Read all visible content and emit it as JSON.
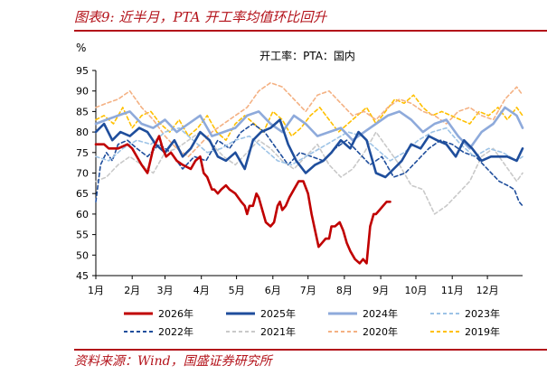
{
  "figure": {
    "title": "图表9:  近半月，PTA 开工率均值环比回升",
    "source": "资料来源：Wind，国盛证券研究所"
  },
  "chart_data": {
    "type": "line",
    "title": "开工率：PTA：国内",
    "ylabel": "%",
    "xlabel": "",
    "ylim": [
      45,
      95
    ],
    "yticks": [
      "45",
      "50",
      "55",
      "60",
      "65",
      "70",
      "75",
      "80",
      "85",
      "90",
      "95"
    ],
    "x_tick_labels": [
      "1月",
      "2月",
      "3月",
      "4月",
      "5月",
      "6月",
      "7月",
      "8月",
      "9月",
      "10月",
      "11月",
      "12月"
    ],
    "x_unit": "day of year",
    "legend_position": "bottom",
    "series": [
      {
        "name": "2026年",
        "color": "#c00000",
        "style": "solid-thick",
        "x": [
          1,
          8,
          12,
          20,
          28,
          32,
          40,
          45,
          50,
          55,
          58,
          61,
          65,
          70,
          75,
          82,
          86,
          90,
          93,
          96,
          100,
          102,
          105,
          108,
          112,
          115,
          120,
          125,
          128,
          130,
          132,
          135,
          138,
          140,
          143,
          146,
          150,
          153,
          156,
          158,
          160,
          163,
          166,
          170,
          174,
          178,
          182,
          185,
          188,
          191,
          194,
          197,
          200,
          202,
          205,
          209,
          212,
          215,
          218,
          222,
          226,
          229,
          232,
          235,
          238,
          240,
          243,
          246,
          249,
          252
        ],
        "y": [
          77,
          77,
          76,
          76,
          77,
          76,
          72,
          70,
          76,
          79,
          76,
          74,
          75,
          73,
          72,
          71,
          73,
          74,
          70,
          69,
          66,
          66,
          65,
          66,
          67,
          66,
          65,
          63,
          62,
          60,
          62,
          62,
          65,
          64,
          61,
          58,
          57,
          58,
          62,
          63,
          61,
          62,
          64,
          66,
          68,
          68,
          65,
          60,
          56,
          52,
          53,
          54,
          54,
          57,
          57,
          58,
          56,
          53,
          51,
          49,
          48,
          49,
          48,
          57,
          60,
          60,
          61,
          62,
          63,
          63
        ]
      },
      {
        "name": "2025年",
        "color": "#1f4e9c",
        "style": "solid-thick",
        "x": [
          1,
          8,
          15,
          22,
          30,
          38,
          45,
          52,
          60,
          68,
          75,
          82,
          90,
          98,
          105,
          112,
          120,
          128,
          135,
          142,
          150,
          158,
          165,
          172,
          180,
          188,
          195,
          202,
          210,
          218,
          225,
          232,
          240,
          248,
          255,
          262,
          270,
          278,
          285,
          292,
          300,
          308,
          315,
          322,
          330,
          338,
          345,
          352,
          360,
          365
        ],
        "y": [
          80,
          82,
          78,
          80,
          79,
          81,
          80,
          77,
          75,
          78,
          74,
          76,
          80,
          78,
          74,
          73,
          75,
          71,
          78,
          80,
          81,
          83,
          77,
          73,
          70,
          72,
          73,
          75,
          78,
          76,
          80,
          78,
          70,
          69,
          71,
          73,
          77,
          76,
          79,
          78,
          77,
          74,
          78,
          76,
          73,
          74,
          74,
          74,
          73,
          76
        ]
      },
      {
        "name": "2024年",
        "color": "#8eaadb",
        "style": "solid-thick",
        "x": [
          1,
          10,
          20,
          30,
          40,
          50,
          60,
          70,
          80,
          90,
          100,
          110,
          120,
          130,
          140,
          150,
          160,
          170,
          180,
          190,
          200,
          210,
          220,
          230,
          240,
          250,
          260,
          270,
          280,
          290,
          300,
          310,
          320,
          330,
          340,
          350,
          360,
          365
        ],
        "y": [
          82,
          83,
          84,
          85,
          82,
          81,
          83,
          80,
          82,
          84,
          79,
          80,
          81,
          84,
          85,
          82,
          80,
          84,
          82,
          79,
          80,
          81,
          78,
          80,
          82,
          84,
          85,
          83,
          80,
          82,
          83,
          79,
          76,
          80,
          82,
          86,
          84,
          81
        ]
      },
      {
        "name": "2023年",
        "color": "#9dc3e6",
        "style": "dash",
        "x": [
          1,
          12,
          24,
          36,
          48,
          60,
          72,
          84,
          96,
          108,
          120,
          132,
          144,
          156,
          168,
          180,
          192,
          204,
          216,
          228,
          240,
          252,
          264,
          276,
          288,
          300,
          312,
          324,
          336,
          348,
          360,
          365
        ],
        "y": [
          74,
          73,
          76,
          78,
          77,
          80,
          81,
          78,
          75,
          76,
          78,
          79,
          76,
          73,
          72,
          74,
          76,
          78,
          80,
          79,
          76,
          73,
          75,
          78,
          80,
          81,
          77,
          74,
          76,
          75,
          73,
          74
        ]
      },
      {
        "name": "2022年",
        "color": "#1f4e9c",
        "style": "dash",
        "x": [
          1,
          5,
          10,
          15,
          20,
          28,
          36,
          45,
          55,
          65,
          75,
          85,
          95,
          105,
          115,
          125,
          135,
          145,
          155,
          165,
          175,
          185,
          195,
          205,
          215,
          225,
          235,
          245,
          255,
          265,
          275,
          285,
          295,
          305,
          315,
          325,
          335,
          345,
          352,
          358,
          362,
          365
        ],
        "y": [
          63,
          72,
          75,
          73,
          77,
          78,
          76,
          74,
          77,
          75,
          71,
          74,
          73,
          78,
          76,
          80,
          82,
          80,
          76,
          72,
          75,
          74,
          73,
          76,
          78,
          75,
          72,
          74,
          69,
          70,
          73,
          76,
          78,
          77,
          75,
          74,
          71,
          68,
          67,
          66,
          63,
          62
        ]
      },
      {
        "name": "2021年",
        "color": "#c9c9c9",
        "style": "dash",
        "x": [
          1,
          10,
          20,
          30,
          40,
          50,
          60,
          70,
          80,
          90,
          100,
          110,
          120,
          130,
          140,
          150,
          160,
          170,
          180,
          190,
          200,
          210,
          220,
          230,
          240,
          250,
          260,
          270,
          280,
          290,
          300,
          310,
          320,
          330,
          340,
          350,
          360,
          365
        ],
        "y": [
          68,
          69,
          72,
          74,
          72,
          70,
          75,
          76,
          78,
          80,
          77,
          74,
          72,
          75,
          78,
          76,
          73,
          71,
          74,
          77,
          72,
          69,
          71,
          75,
          80,
          76,
          72,
          67,
          66,
          60,
          62,
          65,
          68,
          74,
          76,
          72,
          68,
          70
        ]
      },
      {
        "name": "2020年",
        "color": "#f4b183",
        "style": "dash",
        "x": [
          1,
          10,
          20,
          30,
          40,
          50,
          60,
          70,
          80,
          90,
          100,
          110,
          120,
          130,
          140,
          150,
          160,
          170,
          180,
          190,
          200,
          210,
          220,
          230,
          240,
          250,
          260,
          270,
          280,
          290,
          300,
          310,
          320,
          330,
          340,
          350,
          360,
          365
        ],
        "y": [
          86,
          87,
          88,
          90,
          86,
          83,
          79,
          76,
          74,
          77,
          80,
          82,
          84,
          86,
          90,
          92,
          91,
          88,
          85,
          89,
          90,
          87,
          84,
          85,
          83,
          86,
          88,
          87,
          85,
          84,
          82,
          85,
          86,
          84,
          83,
          88,
          91,
          89
        ]
      },
      {
        "name": "2019年",
        "color": "#ffc000",
        "style": "dash",
        "x": [
          1,
          8,
          16,
          24,
          32,
          40,
          48,
          56,
          64,
          72,
          80,
          88,
          96,
          104,
          112,
          120,
          128,
          136,
          144,
          152,
          160,
          168,
          176,
          184,
          192,
          200,
          208,
          216,
          224,
          232,
          240,
          248,
          256,
          264,
          272,
          280,
          288,
          296,
          304,
          312,
          320,
          328,
          336,
          344,
          352,
          360,
          365
        ],
        "y": [
          83,
          84,
          82,
          86,
          81,
          84,
          85,
          82,
          80,
          83,
          79,
          81,
          84,
          80,
          78,
          82,
          84,
          82,
          80,
          85,
          83,
          79,
          81,
          84,
          86,
          83,
          80,
          82,
          84,
          86,
          82,
          85,
          88,
          87,
          89,
          86,
          84,
          85,
          84,
          83,
          82,
          85,
          84,
          86,
          83,
          86,
          84
        ]
      }
    ]
  }
}
